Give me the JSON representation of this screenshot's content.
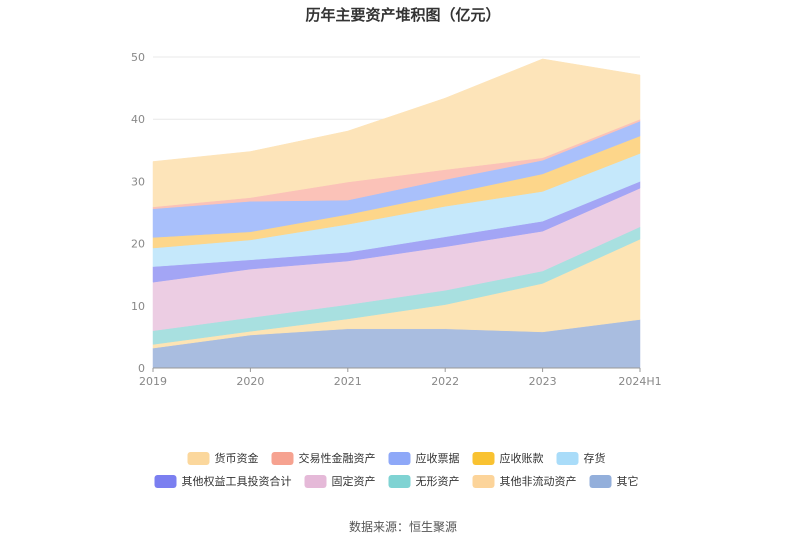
{
  "chart_data": {
    "type": "area",
    "stacked": true,
    "title": "历年主要资产堆积图（亿元）",
    "source": "数据来源：恒生聚源",
    "categories": [
      "2019",
      "2020",
      "2021",
      "2022",
      "2023",
      "2024H1"
    ],
    "ylim": [
      0,
      50
    ],
    "yticks": [
      0,
      10,
      20,
      30,
      40,
      50
    ],
    "grid": true,
    "legend_position": "bottom",
    "series": [
      {
        "name": "其它",
        "color": "#a9bde0",
        "values": [
          3.2,
          5.3,
          6.3,
          6.3,
          5.8,
          7.8
        ]
      },
      {
        "name": "其他非流动资产",
        "color": "#fde4b4",
        "values": [
          0.6,
          0.6,
          1.6,
          3.9,
          7.8,
          12.9
        ]
      },
      {
        "name": "无形资产",
        "color": "#a8e0e0",
        "values": [
          2.2,
          2.2,
          2.3,
          2.3,
          2.0,
          2.0
        ]
      },
      {
        "name": "固定资产",
        "color": "#eccde3",
        "values": [
          7.8,
          7.8,
          7.0,
          7.0,
          6.4,
          6.2
        ]
      },
      {
        "name": "其他权益工具投资合计",
        "color": "#a3a5f5",
        "values": [
          2.5,
          1.5,
          1.4,
          1.6,
          1.6,
          1.1
        ]
      },
      {
        "name": "存货",
        "color": "#c5e8fb",
        "values": [
          3.0,
          3.2,
          4.5,
          4.9,
          4.8,
          4.5
        ]
      },
      {
        "name": "应收账款",
        "color": "#fdd68a",
        "values": [
          1.7,
          1.3,
          1.6,
          1.9,
          2.8,
          2.8
        ]
      },
      {
        "name": "应收票据",
        "color": "#a9c0fb",
        "values": [
          4.6,
          4.9,
          2.3,
          2.4,
          2.2,
          2.4
        ]
      },
      {
        "name": "交易性金融资产",
        "color": "#fbc2b8",
        "values": [
          0.3,
          0.6,
          2.9,
          1.6,
          0.4,
          0.3
        ]
      },
      {
        "name": "货币资金",
        "color": "#fde4b9",
        "values": [
          7.3,
          7.4,
          8.2,
          11.5,
          15.9,
          7.1
        ]
      }
    ],
    "legend": [
      {
        "name": "货币资金",
        "color": "#fbd79c"
      },
      {
        "name": "交易性金融资产",
        "color": "#f6a290"
      },
      {
        "name": "应收票据",
        "color": "#8ea8f8"
      },
      {
        "name": "应收账款",
        "color": "#f9c231"
      },
      {
        "name": "存货",
        "color": "#a9dcf9"
      },
      {
        "name": "其他权益工具投资合计",
        "color": "#7b7ff0"
      },
      {
        "name": "固定资产",
        "color": "#e5b9d8"
      },
      {
        "name": "无形资产",
        "color": "#7fd3d3"
      },
      {
        "name": "其他非流动资产",
        "color": "#fcd49a"
      },
      {
        "name": "其它",
        "color": "#93afdb"
      }
    ]
  }
}
